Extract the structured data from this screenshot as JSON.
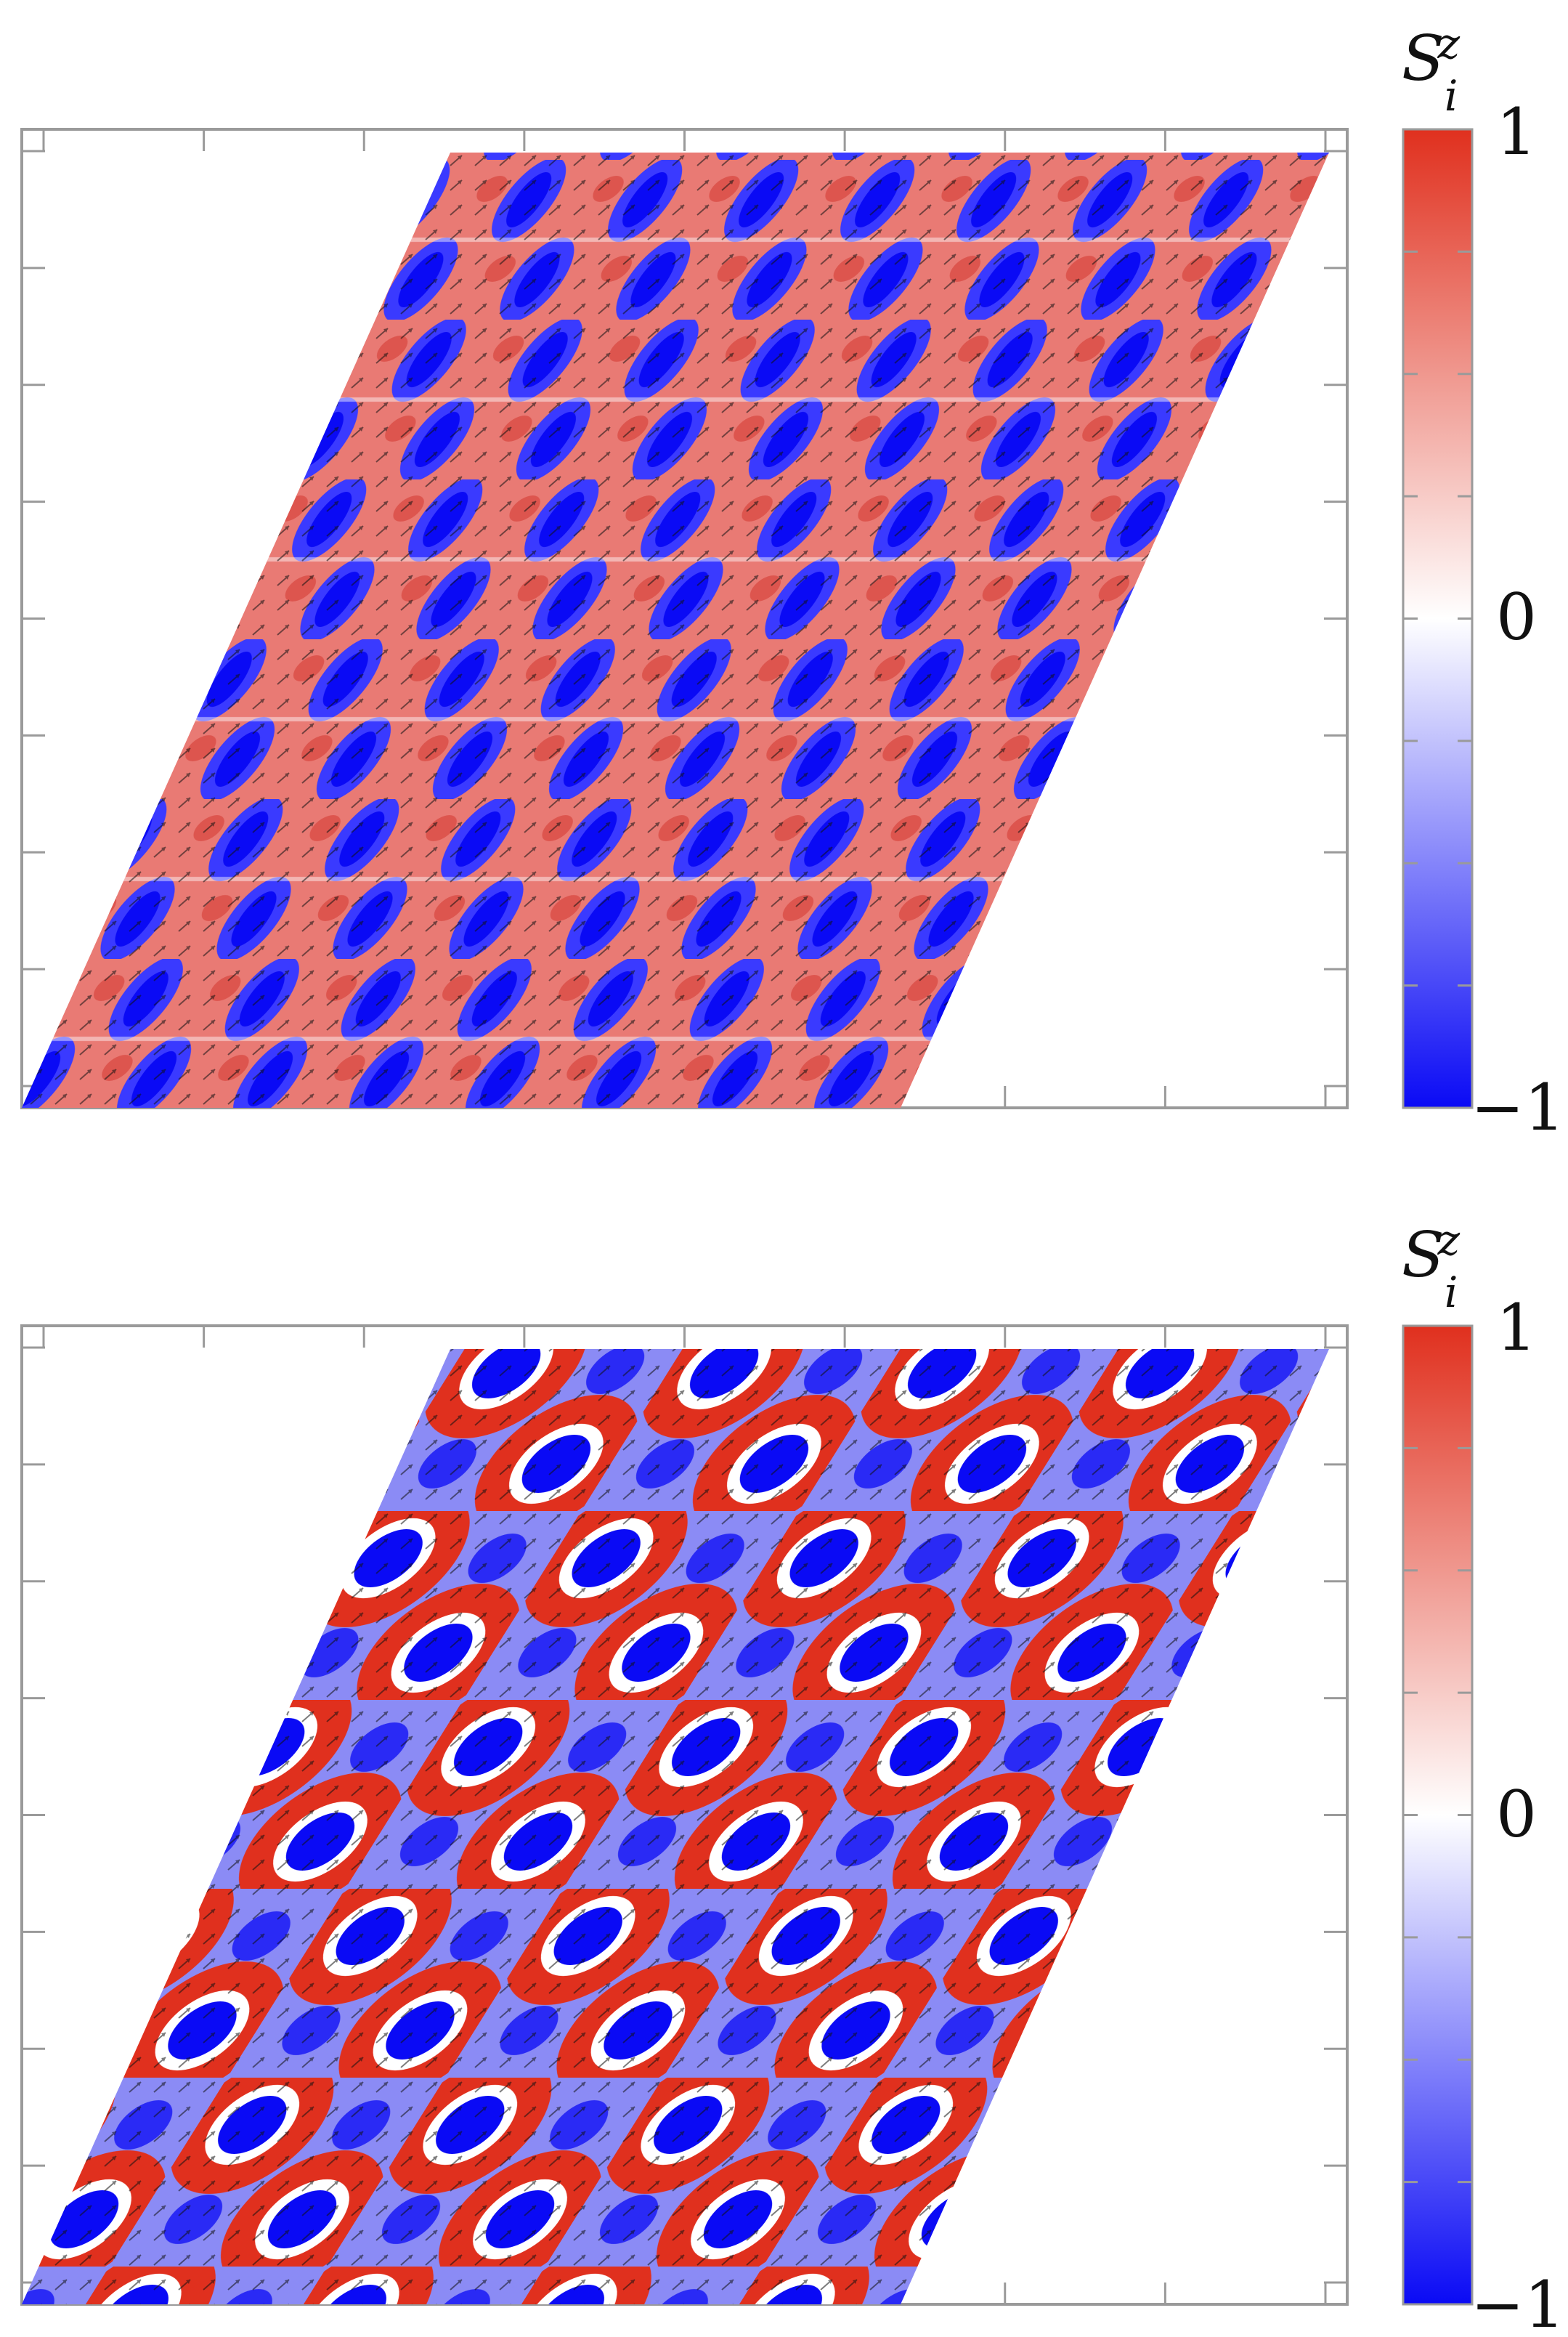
{
  "chart_data": [
    {
      "type": "heatmap",
      "panel": "top",
      "pattern": "stripe",
      "title": "",
      "xlabel": "",
      "ylabel": "",
      "grid": false,
      "colorbar": {
        "title_base": "S",
        "title_sub": "i",
        "title_sup": "z",
        "min": -1,
        "max": 1,
        "tick_values": [
          1,
          0,
          -1
        ],
        "tick_labels": [
          "1",
          "0",
          "−1"
        ],
        "colors": {
          "negative": "#0a0af5",
          "zero": "#ffffff",
          "positive": "#e0301e"
        }
      }
    },
    {
      "type": "heatmap",
      "panel": "bottom",
      "pattern": "hexagonal",
      "title": "",
      "xlabel": "",
      "ylabel": "",
      "grid": false,
      "colorbar": {
        "title_base": "S",
        "title_sub": "i",
        "title_sup": "z",
        "min": -1,
        "max": 1,
        "tick_values": [
          1,
          0,
          -1
        ],
        "tick_labels": [
          "1",
          "0",
          "−1"
        ],
        "colors": {
          "negative": "#0a0af5",
          "zero": "#ffffff",
          "positive": "#e0301e"
        }
      }
    }
  ]
}
